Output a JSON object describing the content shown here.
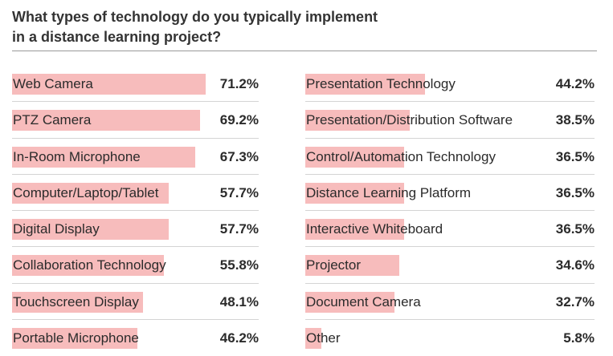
{
  "title_line1": "What types of technology do you typically implement",
  "title_line2": "in a distance learning project?",
  "chart_data": {
    "type": "bar",
    "title": "What types of technology do you typically implement in a distance learning project?",
    "orientation": "horizontal",
    "bar_color": "#f7bcbc",
    "columns": [
      {
        "categories": [
          "Web Camera",
          "PTZ Camera",
          "In-Room Microphone",
          "Computer/Laptop/Tablet",
          "Digital Display",
          "Collaboration Technology",
          "Touchscreen Display",
          "Portable Microphone"
        ],
        "values": [
          71.2,
          69.2,
          67.3,
          57.7,
          57.7,
          55.8,
          48.1,
          46.2
        ],
        "labels": [
          "71.2%",
          "69.2%",
          "67.3%",
          "57.7%",
          "57.7%",
          "55.8%",
          "48.1%",
          "46.2%"
        ]
      },
      {
        "categories": [
          "Presentation Technology",
          "Presentation/Distribution Software",
          "Control/Automation Technology",
          "Distance Learning Platform",
          "Interactive Whiteboard",
          "Projector",
          "Document Camera",
          "Other"
        ],
        "values": [
          44.2,
          38.5,
          36.5,
          36.5,
          36.5,
          34.6,
          32.7,
          5.8
        ],
        "labels": [
          "44.2%",
          "38.5%",
          "36.5%",
          "36.5%",
          "36.5%",
          "34.6%",
          "32.7%",
          "5.8%"
        ]
      }
    ]
  }
}
